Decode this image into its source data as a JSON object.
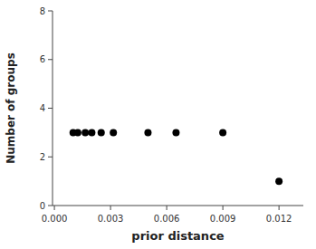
{
  "chart_data": {
    "type": "scatter",
    "x": [
      0.001,
      0.00125,
      0.00165,
      0.002,
      0.0025,
      0.00315,
      0.005,
      0.0065,
      0.009,
      0.012
    ],
    "values": [
      3,
      3,
      3,
      3,
      3,
      3,
      3,
      3,
      3,
      1
    ],
    "xlabel": "prior distance",
    "ylabel": "Number of groups",
    "xlim": [
      -0.0001,
      0.0133
    ],
    "ylim": [
      0,
      8
    ],
    "xticks": [
      {
        "value": 0,
        "label": "0.000"
      },
      0.003,
      0.006,
      0.009,
      0.012
    ],
    "yticks": [
      0,
      2,
      4,
      6,
      8
    ],
    "color": "#000000",
    "grid": false
  }
}
